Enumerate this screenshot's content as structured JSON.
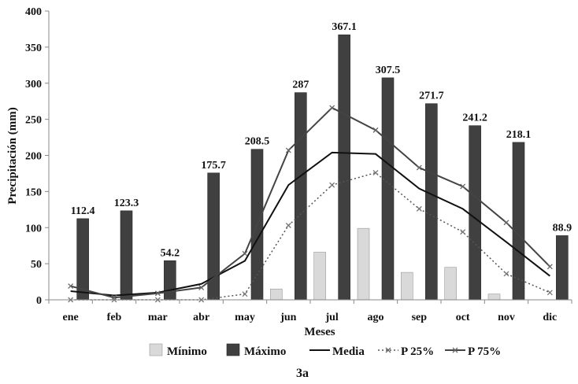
{
  "chart_data": {
    "type": "bar",
    "categories": [
      "ene",
      "feb",
      "mar",
      "abr",
      "may",
      "jun",
      "jul",
      "ago",
      "sep",
      "oct",
      "nov",
      "dic"
    ],
    "xlabel": "Meses",
    "ylabel": "Precipitación (mm)",
    "ylim": [
      0,
      400
    ],
    "yticks": [
      0,
      50,
      100,
      150,
      200,
      250,
      300,
      350,
      400
    ],
    "grid": false,
    "legend_position": "bottom",
    "caption": "3a",
    "series": [
      {
        "name": "Mínimo",
        "kind": "bar",
        "color": "#d9d9d9",
        "values": [
          0,
          0,
          0,
          0,
          0,
          15,
          66,
          99,
          38,
          45,
          8,
          0
        ]
      },
      {
        "name": "Máximo",
        "kind": "bar",
        "color": "#404040",
        "values": [
          112.4,
          123.3,
          54.2,
          175.7,
          208.5,
          287,
          367.1,
          307.5,
          271.7,
          241.2,
          218.1,
          88.9
        ],
        "data_labels": [
          "112.4",
          "123.3",
          "54.2",
          "175.7",
          "208.5",
          "287",
          "367.1",
          "307.5",
          "271.7",
          "241.2",
          "218.1",
          "88.9"
        ]
      },
      {
        "name": "Media",
        "kind": "line",
        "style": "solid",
        "color": "#111111",
        "values": [
          12,
          6,
          10,
          22,
          54,
          159,
          204,
          202,
          154,
          126,
          80,
          33
        ]
      },
      {
        "name": "P 25%",
        "kind": "line",
        "style": "dotted",
        "marker": "x",
        "color": "#555555",
        "values": [
          0,
          0,
          0,
          0,
          8,
          103,
          159,
          176,
          126,
          94,
          36,
          10
        ]
      },
      {
        "name": "P 75%",
        "kind": "line",
        "style": "solid",
        "marker": "x",
        "color": "#444444",
        "values": [
          19,
          3,
          9,
          17,
          64,
          207,
          266,
          235,
          183,
          157,
          107,
          46
        ]
      }
    ]
  }
}
